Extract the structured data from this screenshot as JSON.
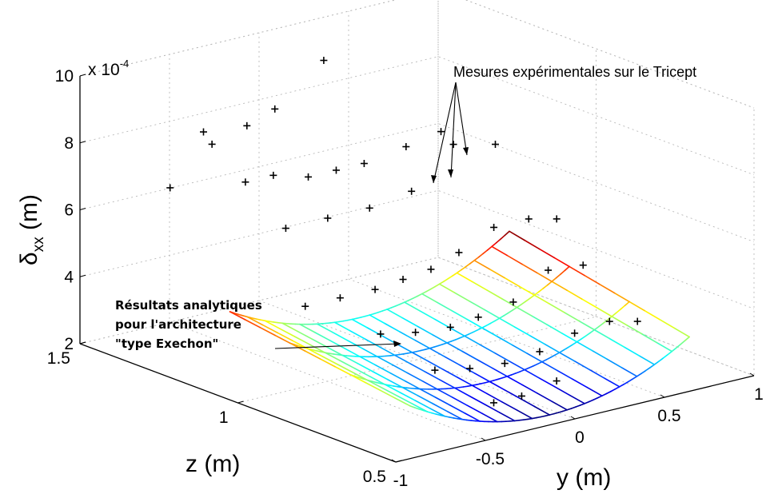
{
  "chart_data": {
    "type": "surface3d",
    "xlabel": "z (m)",
    "ylabel": "y (m)",
    "zlabel_base": "δ",
    "zlabel_sub": "xx",
    "zlabel_unit": " (m)",
    "exponent_label": "x 10",
    "exponent_power": "-4",
    "z_axis_ticks": [
      "0.5",
      "1",
      "1.5"
    ],
    "y_axis_ticks": [
      "-1",
      "-0.5",
      "0",
      "0.5",
      "1"
    ],
    "vertical_ticks": [
      "2",
      "4",
      "6",
      "8",
      "10"
    ],
    "annotations": {
      "measurements": "Mesures expérimentales sur le Tricept",
      "analytic_line1": "Résultats analytiques",
      "analytic_line2": "pour l'architecture",
      "analytic_line3": "\"type Exechon\""
    },
    "surface": {
      "y_range": [
        -1,
        1
      ],
      "z_range": [
        0.5,
        1.5
      ],
      "description_values_units": "1e-4 m",
      "value_min": 1.7,
      "value_max": 5.9
    },
    "measured_points": [
      {
        "z": 1.45,
        "y": -0.75,
        "v": 6.3
      },
      {
        "z": 1.45,
        "y": -0.45,
        "v": 7.3
      },
      {
        "z": 1.45,
        "y": -0.2,
        "v": 7.6
      },
      {
        "z": 1.45,
        "y": 0.0,
        "v": 7.9
      },
      {
        "z": 1.45,
        "y": 0.35,
        "v": 9.0
      },
      {
        "z": 1.3,
        "y": -0.85,
        "v": 8.6
      },
      {
        "z": 1.3,
        "y": -0.55,
        "v": 6.8
      },
      {
        "z": 1.3,
        "y": -0.35,
        "v": 6.8
      },
      {
        "z": 1.3,
        "y": -0.1,
        "v": 6.5
      },
      {
        "z": 1.3,
        "y": 0.1,
        "v": 6.5
      },
      {
        "z": 1.3,
        "y": 0.3,
        "v": 6.5
      },
      {
        "z": 1.3,
        "y": 0.6,
        "v": 6.7
      },
      {
        "z": 1.3,
        "y": 0.85,
        "v": 6.9
      },
      {
        "z": 1.15,
        "y": -0.6,
        "v": 6.0
      },
      {
        "z": 1.15,
        "y": -0.3,
        "v": 6.0
      },
      {
        "z": 1.15,
        "y": 0.0,
        "v": 6.0
      },
      {
        "z": 1.15,
        "y": 0.3,
        "v": 6.2
      },
      {
        "z": 1.15,
        "y": 0.6,
        "v": 7.3
      },
      {
        "z": 1.15,
        "y": 0.9,
        "v": 7.0
      },
      {
        "z": 1.0,
        "y": -0.8,
        "v": 4.4
      },
      {
        "z": 1.0,
        "y": -0.55,
        "v": 4.4
      },
      {
        "z": 1.0,
        "y": -0.3,
        "v": 4.4
      },
      {
        "z": 1.0,
        "y": -0.1,
        "v": 4.5
      },
      {
        "z": 1.0,
        "y": 0.1,
        "v": 4.6
      },
      {
        "z": 1.0,
        "y": 0.3,
        "v": 4.9
      },
      {
        "z": 1.0,
        "y": 0.55,
        "v": 5.4
      },
      {
        "z": 1.0,
        "y": 0.8,
        "v": 5.4
      },
      {
        "z": 1.0,
        "y": 1.0,
        "v": 5.2
      },
      {
        "z": 0.85,
        "y": -0.6,
        "v": 3.9
      },
      {
        "z": 0.85,
        "y": -0.35,
        "v": 3.7
      },
      {
        "z": 0.85,
        "y": -0.1,
        "v": 3.6
      },
      {
        "z": 0.85,
        "y": 0.1,
        "v": 3.7
      },
      {
        "z": 0.85,
        "y": 0.35,
        "v": 3.9
      },
      {
        "z": 0.85,
        "y": 0.6,
        "v": 4.6
      },
      {
        "z": 0.85,
        "y": 0.85,
        "v": 4.5
      },
      {
        "z": 0.7,
        "y": -0.55,
        "v": 3.3
      },
      {
        "z": 0.7,
        "y": -0.3,
        "v": 3.1
      },
      {
        "z": 0.7,
        "y": -0.05,
        "v": 3.0
      },
      {
        "z": 0.7,
        "y": 0.2,
        "v": 3.1
      },
      {
        "z": 0.7,
        "y": 0.45,
        "v": 3.4
      },
      {
        "z": 0.7,
        "y": 0.7,
        "v": 3.5
      },
      {
        "z": 0.7,
        "y": 0.9,
        "v": 3.3
      },
      {
        "z": 0.58,
        "y": -0.4,
        "v": 2.6
      },
      {
        "z": 0.58,
        "y": -0.2,
        "v": 2.6
      },
      {
        "z": 0.58,
        "y": 0.05,
        "v": 2.8
      }
    ]
  }
}
